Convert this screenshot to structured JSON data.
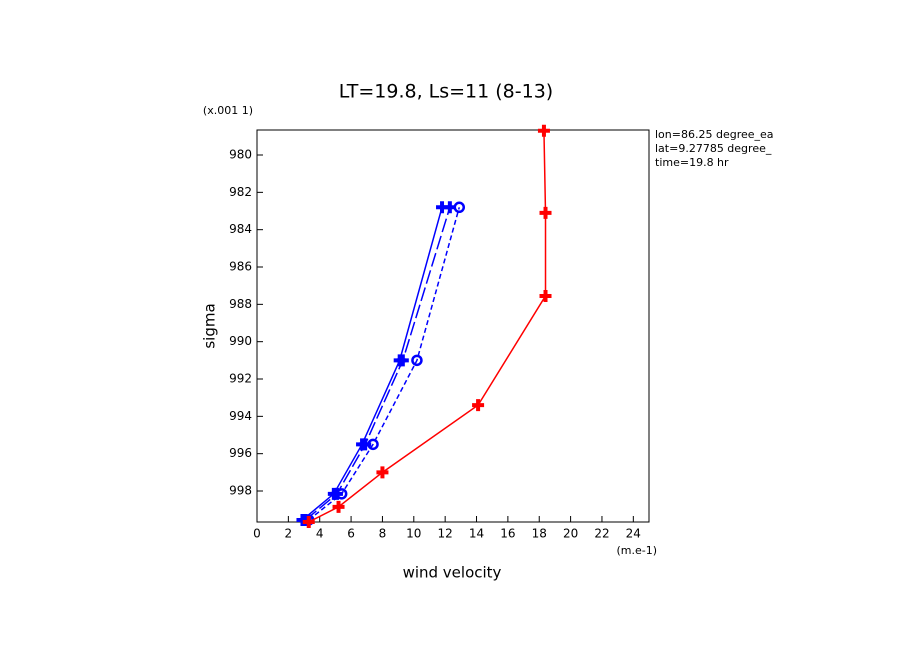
{
  "chart_data": {
    "type": "line",
    "title": "LT=19.8, Ls=11 (8-13)",
    "x_label": "wind velocity",
    "y_label": "sigma",
    "x_units": "(m.e-1)",
    "y_units": "(x.001 1)",
    "annotations": [
      "lon=86.25 degree_ea",
      "lat=9.27785 degree_",
      "time=19.8 hr"
    ],
    "xlim": [
      0,
      25
    ],
    "xticks": [
      0,
      2,
      4,
      6,
      8,
      10,
      12,
      14,
      16,
      18,
      20,
      22,
      24
    ],
    "ylim": [
      978.66,
      999.66
    ],
    "yticks": [
      980,
      982,
      984,
      986,
      988,
      990,
      992,
      994,
      996,
      998
    ],
    "y_inverted": true,
    "series": [
      {
        "color": "#0000ff",
        "dash": "solid",
        "marker": "plus",
        "x": [
          2.9,
          4.9,
          6.7,
          9.1,
          11.8
        ],
        "values": [
          999.55,
          998.15,
          995.5,
          991.0,
          982.8
        ]
      },
      {
        "color": "#0000ff",
        "dash": "long",
        "marker": "plus",
        "x": [
          3.1,
          5.1,
          6.9,
          9.3,
          12.3
        ],
        "values": [
          999.55,
          998.15,
          995.5,
          991.0,
          982.8
        ]
      },
      {
        "color": "#0000ff",
        "dash": "short",
        "marker": "circle",
        "x": [
          3.3,
          5.4,
          7.4,
          10.2,
          12.9
        ],
        "values": [
          999.55,
          998.15,
          995.5,
          991.0,
          982.8
        ]
      },
      {
        "color": "#ff0000",
        "dash": "solid",
        "marker": "plus",
        "x": [
          3.3,
          5.2,
          8.0,
          14.1,
          18.4,
          18.4,
          18.3
        ],
        "values": [
          999.66,
          998.85,
          997.0,
          993.4,
          987.55,
          983.1,
          978.7
        ]
      }
    ]
  }
}
